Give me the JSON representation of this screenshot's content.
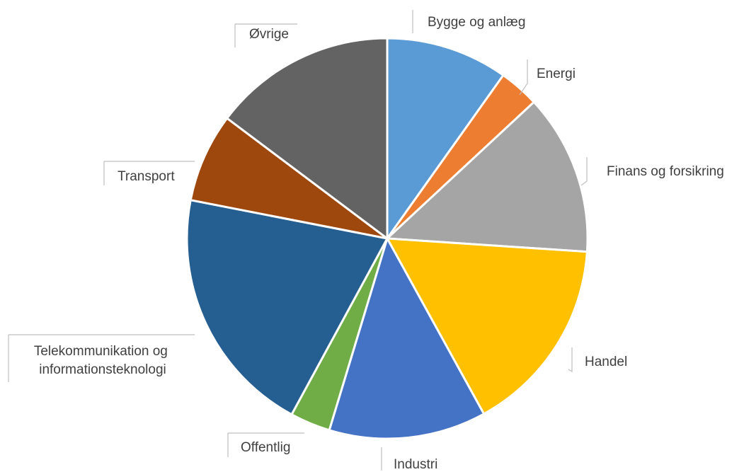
{
  "chart_data": {
    "type": "pie",
    "title": "",
    "start_angle_deg": 0,
    "direction": "clockwise",
    "legend": "none",
    "slices": [
      {
        "label": "Bygge og anlæg",
        "value": 10,
        "color": "#5b9bd5"
      },
      {
        "label": "Energi",
        "value": 3.3,
        "color": "#ed7d31"
      },
      {
        "label": "Finans og forsikring",
        "value": 13.2,
        "color": "#a5a5a5"
      },
      {
        "label": "Handel",
        "value": 16.2,
        "color": "#ffc000"
      },
      {
        "label": "Industri",
        "value": 12.9,
        "color": "#4472c4"
      },
      {
        "label": "Offentlig",
        "value": 3.3,
        "color": "#70ad47"
      },
      {
        "label": "Telekommunikation og informationsteknologi",
        "value": 20.5,
        "color": "#255e91"
      },
      {
        "label": "Transport",
        "value": 7.3,
        "color": "#9e480e"
      },
      {
        "label": "Øvrige",
        "value": 15.0,
        "color": "#636363"
      }
    ]
  }
}
